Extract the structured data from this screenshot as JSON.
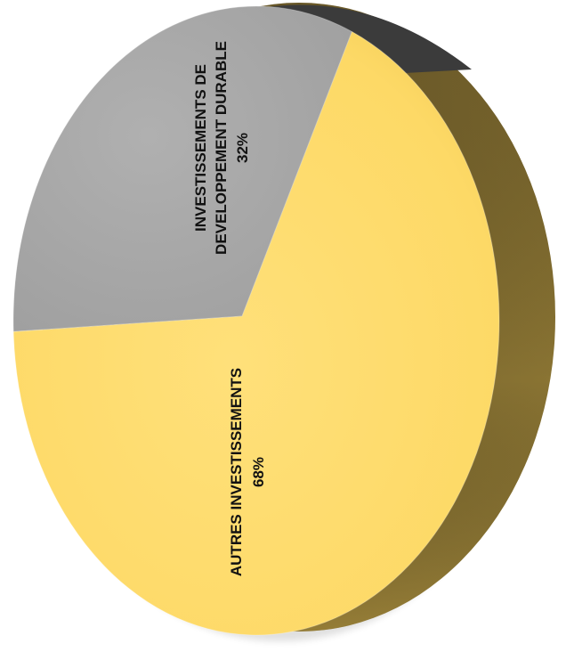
{
  "chart_data": {
    "type": "pie",
    "title": "",
    "slices": [
      {
        "label": "INVESTISSEMENTS DE DEVELOPPEMENT DURABLE",
        "label_lines": [
          "INVESTISSEMENTS DE",
          "DEVELOPPEMENT DURABLE"
        ],
        "value": 32,
        "value_label": "32%",
        "color": "#a6a6a6"
      },
      {
        "label": "AUTRES INVESTISSEMENTS",
        "label_lines": [
          "AUTRES INVESTISSEMENTS"
        ],
        "value": 68,
        "value_label": "68%",
        "color": "#fdd966"
      }
    ],
    "style": "3d",
    "label_orientation": "rotated-90"
  }
}
